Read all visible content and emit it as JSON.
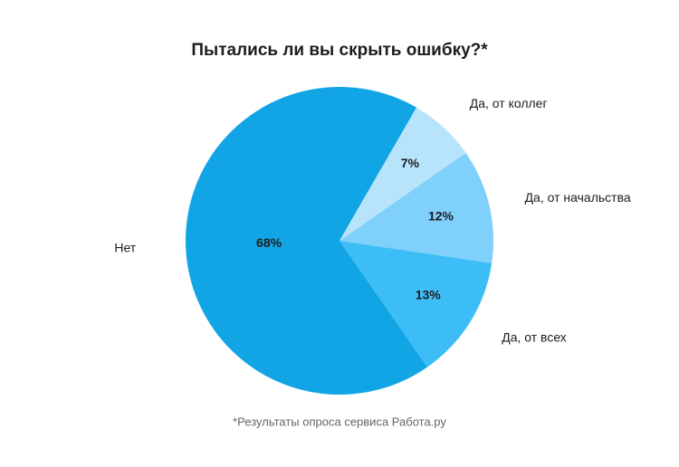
{
  "chart_data": {
    "type": "pie",
    "title": "Пытались ли вы скрыть ошибку?*",
    "categories": [
      "Да, от коллег",
      "Да, от начальства",
      "Да, от всех",
      "Нет"
    ],
    "values": [
      7,
      12,
      13,
      68
    ],
    "value_labels": [
      "7%",
      "12%",
      "13%",
      "68%"
    ],
    "colors": [
      "#b8e4fb",
      "#7fd0fa",
      "#3dbdf6",
      "#12a5e6"
    ],
    "footnote": "*Результаты опроса сервиса Работа.ру"
  }
}
